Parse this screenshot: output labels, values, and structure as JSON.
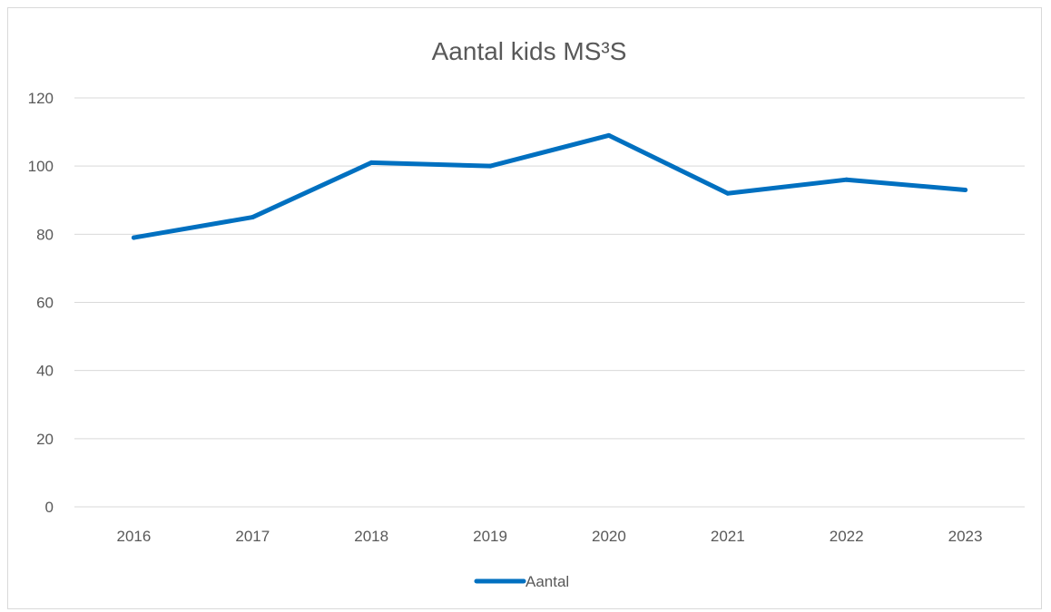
{
  "chart_data": {
    "type": "line",
    "title": "Aantal kids MS³S",
    "xlabel": "",
    "ylabel": "",
    "categories": [
      "2016",
      "2017",
      "2018",
      "2019",
      "2020",
      "2021",
      "2022",
      "2023"
    ],
    "series": [
      {
        "name": "Aantal",
        "values": [
          79,
          85,
          101,
          100,
          109,
          92,
          96,
          93
        ],
        "color": "#0070c0"
      }
    ],
    "ylim": [
      0,
      120
    ],
    "yticks": [
      0,
      20,
      40,
      60,
      80,
      100,
      120
    ],
    "grid": true,
    "legend_position": "bottom",
    "colors": {
      "gridline": "#d9d9d9",
      "text": "#595959",
      "series": "#0070c0"
    }
  }
}
